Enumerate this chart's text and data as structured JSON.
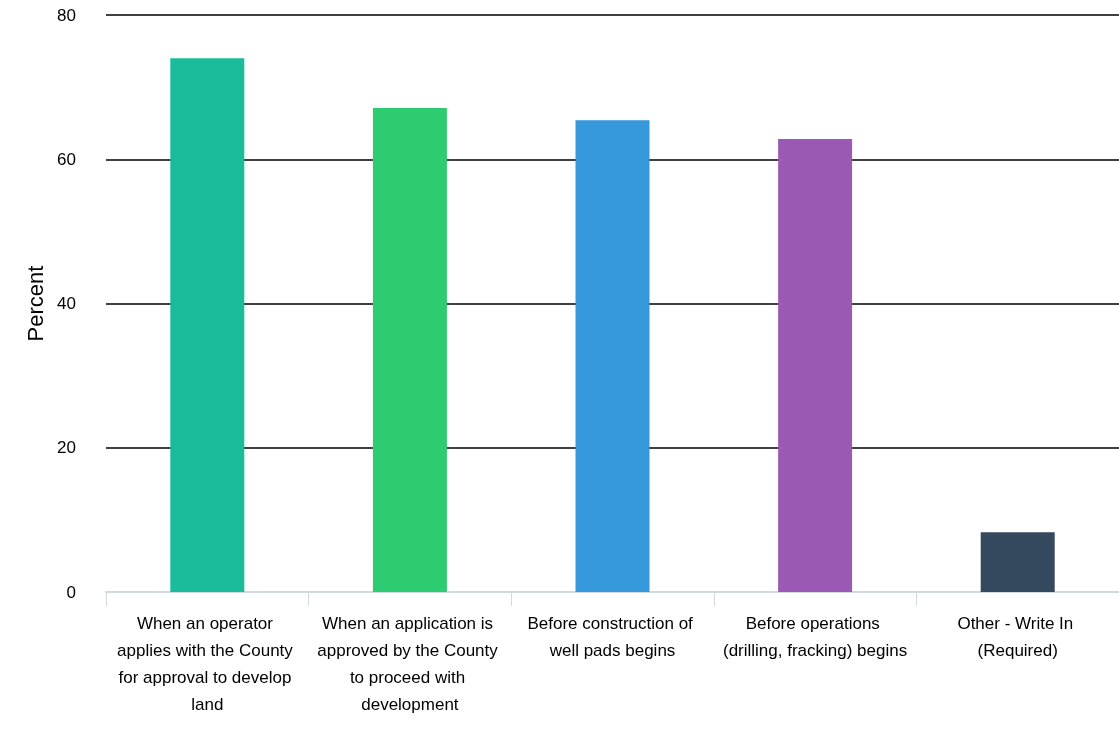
{
  "chart_data": {
    "type": "bar",
    "ylabel": "Percent",
    "categories": [
      "When an operator applies with the County for approval to develop land",
      "When an application is approved by the County to proceed with development",
      "Before construction of well pads begins",
      "Before operations (drilling, fracking) begins",
      "Other - Write In (Required)"
    ],
    "values": [
      74.0,
      67.1,
      65.4,
      62.8,
      8.3
    ],
    "colors": [
      "#1abc9c",
      "#2ecc71",
      "#3498db",
      "#9b59b6",
      "#34495e"
    ],
    "ylim": [
      0,
      80
    ],
    "yticks": [
      0,
      20,
      40,
      60,
      80
    ],
    "grid": "y"
  }
}
